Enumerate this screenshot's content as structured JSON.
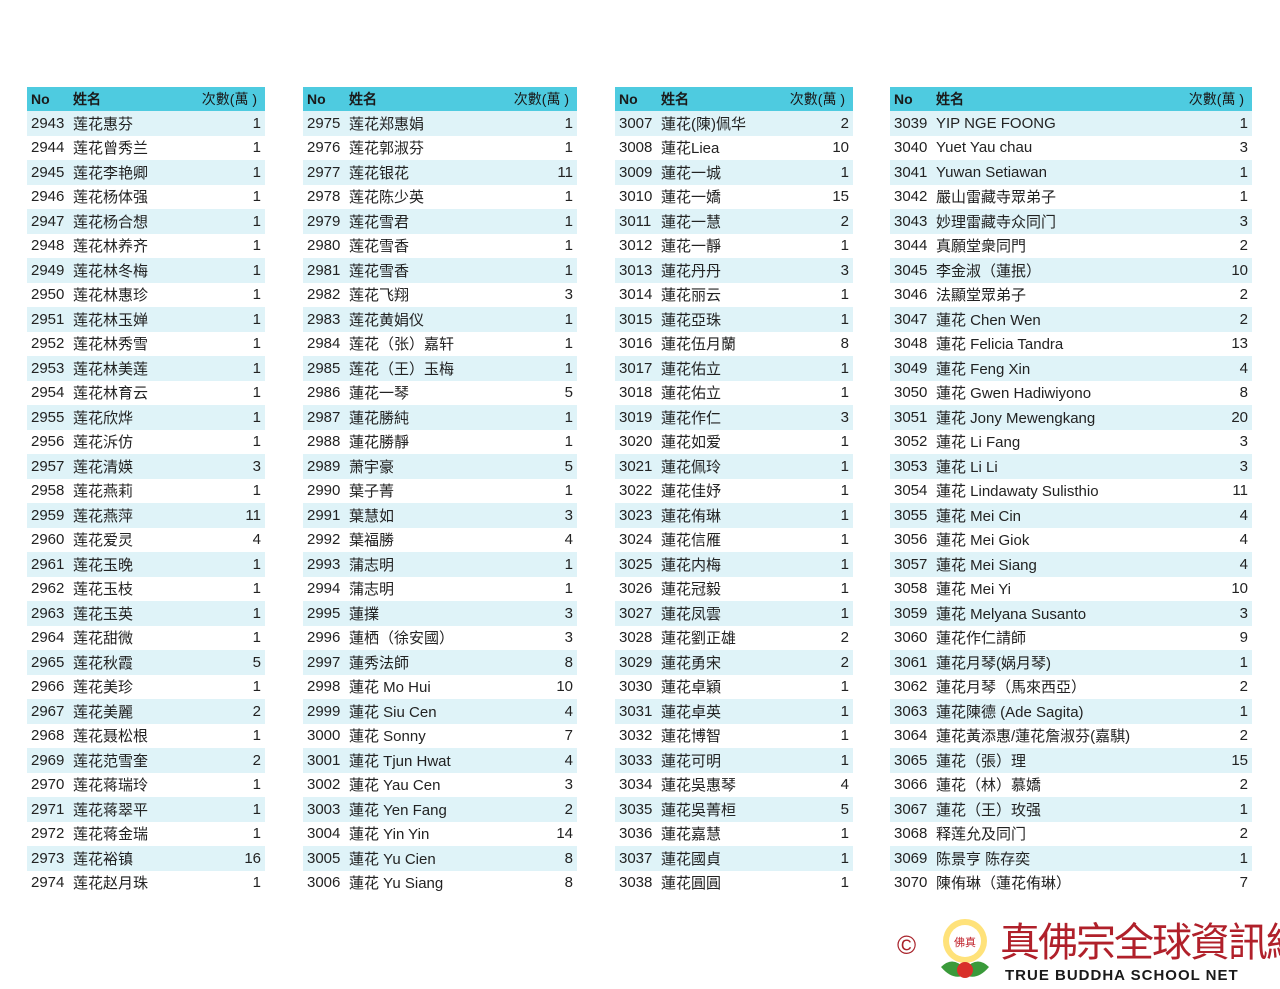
{
  "headers": {
    "no": "No",
    "name": "姓名",
    "count": "次數(萬 )"
  },
  "tables": [
    [
      [
        "2943",
        "莲花惠芬",
        "1"
      ],
      [
        "2944",
        "莲花曾秀兰",
        "1"
      ],
      [
        "2945",
        "莲花李艳卿",
        "1"
      ],
      [
        "2946",
        "莲花杨体强",
        "1"
      ],
      [
        "2947",
        "莲花杨合想",
        "1"
      ],
      [
        "2948",
        "莲花林养齐",
        "1"
      ],
      [
        "2949",
        "莲花林冬梅",
        "1"
      ],
      [
        "2950",
        "莲花林惠珍",
        "1"
      ],
      [
        "2951",
        "莲花林玉婵",
        "1"
      ],
      [
        "2952",
        "莲花林秀雪",
        "1"
      ],
      [
        "2953",
        "莲花林美莲",
        "1"
      ],
      [
        "2954",
        "莲花林育云",
        "1"
      ],
      [
        "2955",
        "莲花欣烨",
        "1"
      ],
      [
        "2956",
        "莲花泝仿",
        "1"
      ],
      [
        "2957",
        "莲花清媖",
        "3"
      ],
      [
        "2958",
        "莲花燕莉",
        "1"
      ],
      [
        "2959",
        "莲花燕萍",
        "11"
      ],
      [
        "2960",
        "莲花爱灵",
        "4"
      ],
      [
        "2961",
        "莲花玉晚",
        "1"
      ],
      [
        "2962",
        "莲花玉枝",
        "1"
      ],
      [
        "2963",
        "莲花玉英",
        "1"
      ],
      [
        "2964",
        "莲花甜微",
        "1"
      ],
      [
        "2965",
        "莲花秋霞",
        "5"
      ],
      [
        "2966",
        "莲花美珍",
        "1"
      ],
      [
        "2967",
        "莲花美麗",
        "2"
      ],
      [
        "2968",
        "莲花聂松根",
        "1"
      ],
      [
        "2969",
        "莲花范雪奎",
        "2"
      ],
      [
        "2970",
        "莲花蒋瑞玲",
        "1"
      ],
      [
        "2971",
        "莲花蒋翠平",
        "1"
      ],
      [
        "2972",
        "莲花蒋金瑞",
        "1"
      ],
      [
        "2973",
        "莲花裕镇",
        "16"
      ],
      [
        "2974",
        "莲花赵月珠",
        "1"
      ]
    ],
    [
      [
        "2975",
        "莲花郑惠娟",
        "1"
      ],
      [
        "2976",
        "莲花郭淑芬",
        "1"
      ],
      [
        "2977",
        "莲花银花",
        "11"
      ],
      [
        "2978",
        "莲花陈少英",
        "1"
      ],
      [
        "2979",
        "莲花雪君",
        "1"
      ],
      [
        "2980",
        "莲花雪香",
        "1"
      ],
      [
        "2981",
        "莲花雪香",
        "1"
      ],
      [
        "2982",
        "莲花飞翔",
        "3"
      ],
      [
        "2983",
        "莲花黄娟仪",
        "1"
      ],
      [
        "2984",
        "莲花（张）嘉轩",
        "1"
      ],
      [
        "2985",
        "莲花（王）玉梅",
        "1"
      ],
      [
        "2986",
        "蓮花一琴",
        "5"
      ],
      [
        "2987",
        "蓮花勝純",
        "1"
      ],
      [
        "2988",
        "蓮花勝靜",
        "1"
      ],
      [
        "2989",
        "萧宇豪",
        "5"
      ],
      [
        "2990",
        "葉子菁",
        "1"
      ],
      [
        "2991",
        "葉慧如",
        "3"
      ],
      [
        "2992",
        "葉福勝",
        "4"
      ],
      [
        "2993",
        "蒲志明",
        "1"
      ],
      [
        "2994",
        "蒲志明",
        "1"
      ],
      [
        "2995",
        "蓮擈",
        "3"
      ],
      [
        "2996",
        "蓮栖（徐安國）",
        "3"
      ],
      [
        "2997",
        "蓮秀法師",
        "8"
      ],
      [
        "2998",
        "蓮花 Mo Hui",
        "10"
      ],
      [
        "2999",
        "蓮花 Siu Cen",
        "4"
      ],
      [
        "3000",
        "蓮花 Sonny",
        "7"
      ],
      [
        "3001",
        "蓮花 Tjun Hwat",
        "4"
      ],
      [
        "3002",
        "蓮花 Yau Cen",
        "3"
      ],
      [
        "3003",
        "蓮花 Yen Fang",
        "2"
      ],
      [
        "3004",
        "蓮花 Yin Yin",
        "14"
      ],
      [
        "3005",
        "蓮花 Yu Cien",
        "8"
      ],
      [
        "3006",
        "蓮花 Yu Siang",
        "8"
      ]
    ],
    [
      [
        "3007",
        "蓮花(陳)佩华",
        "2"
      ],
      [
        "3008",
        "蓮花Liea",
        "10"
      ],
      [
        "3009",
        "蓮花一城",
        "1"
      ],
      [
        "3010",
        "蓮花一嬌",
        "15"
      ],
      [
        "3011",
        "蓮花一慧",
        "2"
      ],
      [
        "3012",
        "蓮花一靜",
        "1"
      ],
      [
        "3013",
        "蓮花丹丹",
        "3"
      ],
      [
        "3014",
        "蓮花丽云",
        "1"
      ],
      [
        "3015",
        "蓮花亞珠",
        "1"
      ],
      [
        "3016",
        "蓮花伍月蘭",
        "8"
      ],
      [
        "3017",
        "蓮花佑立",
        "1"
      ],
      [
        "3018",
        "蓮花佑立",
        "1"
      ],
      [
        "3019",
        "蓮花作仁",
        "3"
      ],
      [
        "3020",
        "蓮花如爱",
        "1"
      ],
      [
        "3021",
        "蓮花佩玲",
        "1"
      ],
      [
        "3022",
        "蓮花佳妤",
        "1"
      ],
      [
        "3023",
        "蓮花侑琳",
        "1"
      ],
      [
        "3024",
        "蓮花信雁",
        "1"
      ],
      [
        "3025",
        "蓮花内梅",
        "1"
      ],
      [
        "3026",
        "蓮花冠毅",
        "1"
      ],
      [
        "3027",
        "蓮花凤雲",
        "1"
      ],
      [
        "3028",
        "蓮花劉正雄",
        "2"
      ],
      [
        "3029",
        "蓮花勇宋",
        "2"
      ],
      [
        "3030",
        "蓮花卓穎",
        "1"
      ],
      [
        "3031",
        "蓮花卓英",
        "1"
      ],
      [
        "3032",
        "蓮花博智",
        "1"
      ],
      [
        "3033",
        "蓮花可明",
        "1"
      ],
      [
        "3034",
        "蓮花吳惠琴",
        "4"
      ],
      [
        "3035",
        "蓮花吳菁桓",
        "5"
      ],
      [
        "3036",
        "蓮花嘉慧",
        "1"
      ],
      [
        "3037",
        "蓮花國貞",
        "1"
      ],
      [
        "3038",
        "蓮花圓圓",
        "1"
      ]
    ],
    [
      [
        "3039",
        "YIP NGE FOONG",
        "1"
      ],
      [
        "3040",
        "Yuet Yau chau",
        "3"
      ],
      [
        "3041",
        "Yuwan Setiawan",
        "1"
      ],
      [
        "3042",
        "嚴山雷藏寺眾弟子",
        "1"
      ],
      [
        "3043",
        "妙理雷藏寺众同门",
        "3"
      ],
      [
        "3044",
        "真願堂衆同門",
        "2"
      ],
      [
        "3045",
        "李金淑（蓮抿）",
        "10"
      ],
      [
        "3046",
        "法顯堂眾弟子",
        "2"
      ],
      [
        "3047",
        "蓮花 Chen Wen",
        "2"
      ],
      [
        "3048",
        "蓮花 Felicia Tandra",
        "13"
      ],
      [
        "3049",
        "蓮花 Feng Xin",
        "4"
      ],
      [
        "3050",
        "蓮花 Gwen Hadiwiyono",
        "8"
      ],
      [
        "3051",
        "蓮花 Jony Mewengkang",
        "20"
      ],
      [
        "3052",
        "蓮花 Li Fang",
        "3"
      ],
      [
        "3053",
        "蓮花 Li Li",
        "3"
      ],
      [
        "3054",
        "蓮花 Lindawaty Sulisthio",
        "11"
      ],
      [
        "3055",
        "蓮花 Mei Cin",
        "4"
      ],
      [
        "3056",
        "蓮花 Mei Giok",
        "4"
      ],
      [
        "3057",
        "蓮花 Mei Siang",
        "4"
      ],
      [
        "3058",
        "蓮花 Mei Yi",
        "10"
      ],
      [
        "3059",
        "蓮花 Melyana Susanto",
        "3"
      ],
      [
        "3060",
        "蓮花作仁請師",
        "9"
      ],
      [
        "3061",
        "蓮花月琴(娲月琴)",
        "1"
      ],
      [
        "3062",
        "蓮花月琴（馬來西亞）",
        "2"
      ],
      [
        "3063",
        "蓮花陳德 (Ade Sagita)",
        "1"
      ],
      [
        "3064",
        "蓮花黃添惠/蓮花詹淑芬(嘉騏)",
        "2"
      ],
      [
        "3065",
        "蓮花（張）理",
        "15"
      ],
      [
        "3066",
        "蓮花（林）慕嬌",
        "2"
      ],
      [
        "3067",
        "蓮花（王）玫强",
        "1"
      ],
      [
        "3068",
        "释莲允及同门",
        "2"
      ],
      [
        "3069",
        "陈景亨 陈存奕",
        "1"
      ],
      [
        "3070",
        "陳侑琳（蓮花侑琳）",
        "7"
      ]
    ]
  ],
  "logo": {
    "copyright": "©",
    "chinese": "真佛宗全球資訊網",
    "english": "TRUE BUDDHA SCHOOL NET",
    "emblem_text": "真佛宗"
  },
  "colors": {
    "header": "#4ecbe0",
    "row_alt": "#dff3f8",
    "logo_red": "#b0202a"
  }
}
